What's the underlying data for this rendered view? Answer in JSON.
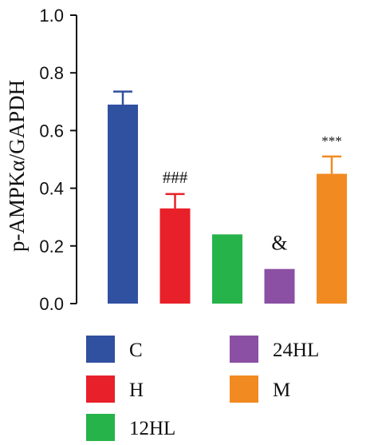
{
  "chart_data": {
    "type": "bar",
    "categories": [
      "C",
      "H",
      "12HL",
      "24HL",
      "M"
    ],
    "values": [
      0.69,
      0.33,
      0.24,
      0.12,
      0.45
    ],
    "errors": [
      0.045,
      0.05,
      0.0,
      0.0,
      0.06
    ],
    "colors": [
      "#3050a0",
      "#e8202a",
      "#26b34a",
      "#8b4fa3",
      "#f28a22"
    ],
    "annotations": [
      "",
      "###",
      "",
      "&",
      "***"
    ],
    "ylabel": "p-AMPKα/GAPDH",
    "ylim": [
      0,
      1.0
    ],
    "yticks": [
      "0.0",
      "0.2",
      "0.4",
      "0.6",
      "0.8",
      "1.0"
    ],
    "legend_position": "bottom",
    "grid": false
  }
}
